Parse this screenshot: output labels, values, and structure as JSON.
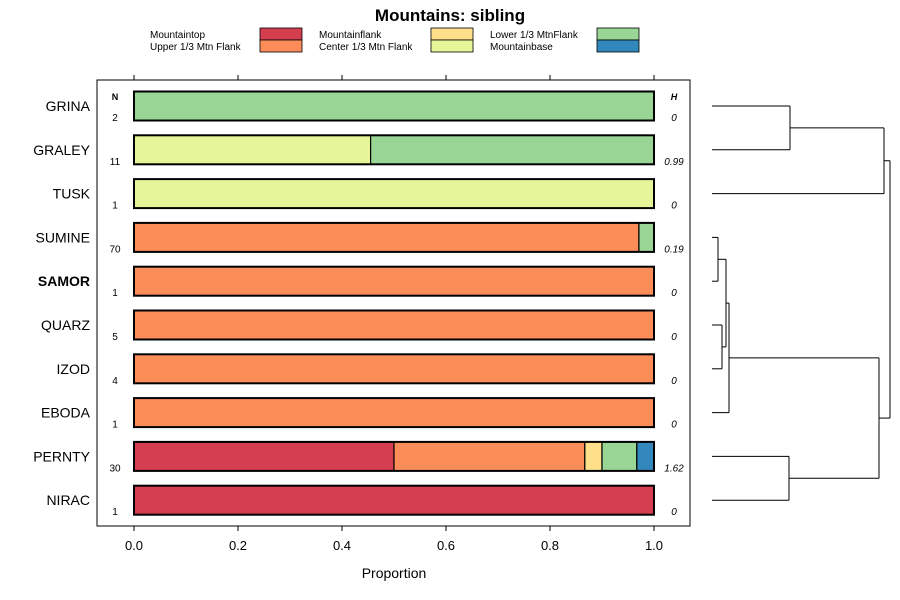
{
  "chart_data": {
    "type": "stacked-bar-horizontal",
    "title": "Mountains: sibling",
    "xlabel": "Proportion",
    "ylabel": "",
    "xlim": [
      0,
      1
    ],
    "x_ticks": [
      "0.0",
      "0.2",
      "0.4",
      "0.6",
      "0.8",
      "1.0"
    ],
    "x_tick_values": [
      0,
      0.2,
      0.4,
      0.6,
      0.8,
      1.0
    ],
    "n_header": "N",
    "h_header": "H",
    "legend": [
      {
        "name": "Mountaintop",
        "color": "#d53e4f"
      },
      {
        "name": "Upper 1/3 Mtn Flank",
        "color": "#fc8d59"
      },
      {
        "name": "Mountainflank",
        "color": "#fee08b"
      },
      {
        "name": "Center 1/3 Mtn Flank",
        "color": "#e6f598"
      },
      {
        "name": "Lower 1/3 MtnFlank",
        "color": "#99d594"
      },
      {
        "name": "Mountainbase",
        "color": "#3288bd"
      }
    ],
    "rows": [
      {
        "label": "GRINA",
        "bold": false,
        "n": "2",
        "h": "0",
        "segments": [
          {
            "cat": "Lower 1/3 MtnFlank",
            "value": 1.0
          }
        ]
      },
      {
        "label": "GRALEY",
        "bold": false,
        "n": "11",
        "h": "0.99",
        "segments": [
          {
            "cat": "Center 1/3 Mtn Flank",
            "value": 0.455
          },
          {
            "cat": "Lower 1/3 MtnFlank",
            "value": 0.545
          }
        ]
      },
      {
        "label": "TUSK",
        "bold": false,
        "n": "1",
        "h": "0",
        "segments": [
          {
            "cat": "Center 1/3 Mtn Flank",
            "value": 1.0
          }
        ]
      },
      {
        "label": "SUMINE",
        "bold": false,
        "n": "70",
        "h": "0.19",
        "segments": [
          {
            "cat": "Upper 1/3 Mtn Flank",
            "value": 0.971
          },
          {
            "cat": "Lower 1/3 MtnFlank",
            "value": 0.029
          }
        ]
      },
      {
        "label": "SAMOR",
        "bold": true,
        "n": "1",
        "h": "0",
        "segments": [
          {
            "cat": "Upper 1/3 Mtn Flank",
            "value": 1.0
          }
        ]
      },
      {
        "label": "QUARZ",
        "bold": false,
        "n": "5",
        "h": "0",
        "segments": [
          {
            "cat": "Upper 1/3 Mtn Flank",
            "value": 1.0
          }
        ]
      },
      {
        "label": "IZOD",
        "bold": false,
        "n": "4",
        "h": "0",
        "segments": [
          {
            "cat": "Upper 1/3 Mtn Flank",
            "value": 1.0
          }
        ]
      },
      {
        "label": "EBODA",
        "bold": false,
        "n": "1",
        "h": "0",
        "segments": [
          {
            "cat": "Upper 1/3 Mtn Flank",
            "value": 1.0
          }
        ]
      },
      {
        "label": "PERNTY",
        "bold": false,
        "n": "30",
        "h": "1.62",
        "segments": [
          {
            "cat": "Mountaintop",
            "value": 0.5
          },
          {
            "cat": "Upper 1/3 Mtn Flank",
            "value": 0.367
          },
          {
            "cat": "Mountainflank",
            "value": 0.033
          },
          {
            "cat": "Lower 1/3 MtnFlank",
            "value": 0.067
          },
          {
            "cat": "Mountainbase",
            "value": 0.033
          }
        ]
      },
      {
        "label": "NIRAC",
        "bold": false,
        "n": "1",
        "h": "0",
        "segments": [
          {
            "cat": "Mountaintop",
            "value": 1.0
          }
        ]
      }
    ],
    "dendrogram": {
      "description": "hierarchical clustering of rows",
      "tree": [
        [
          [
            "GRINA",
            "GRALEY"
          ],
          "TUSK"
        ],
        [
          [
            [
              [
                "SUMINE",
                "SAMOR"
              ],
              [
                "QUARZ",
                "IZOD"
              ]
            ],
            "EBODA"
          ],
          [
            "PERNTY",
            "NIRAC"
          ]
        ]
      ]
    }
  }
}
